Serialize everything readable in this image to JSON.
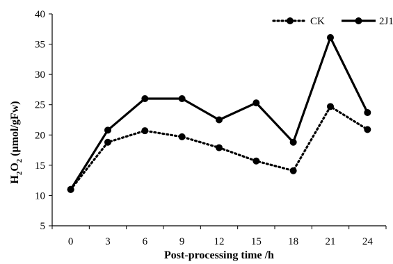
{
  "chart_data": {
    "type": "line",
    "title": "",
    "xlabel": "Post-processing time /h",
    "ylabel": "H2O2 (μmol/gFw)",
    "ylabel_parts": {
      "h": "H",
      "sub1": "2",
      "o": "O",
      "sub2": "2",
      "rest": " (μmol/gFw)"
    },
    "x": [
      0,
      3,
      6,
      9,
      12,
      15,
      18,
      21,
      24
    ],
    "xticks": [
      "0",
      "3",
      "6",
      "9",
      "12",
      "15",
      "18",
      "21",
      "24"
    ],
    "yticks": [
      "5",
      "10",
      "15",
      "20",
      "25",
      "30",
      "35",
      "40"
    ],
    "ylim": [
      5,
      40
    ],
    "grid": false,
    "legend_position": "top-right",
    "series": [
      {
        "name": "CK",
        "style": "dotted",
        "color": "#000000",
        "values": [
          11.0,
          18.8,
          20.7,
          19.7,
          17.9,
          15.7,
          14.1,
          24.7,
          20.9
        ]
      },
      {
        "name": "2J1",
        "style": "solid",
        "color": "#000000",
        "values": [
          11.0,
          20.8,
          26.0,
          26.0,
          22.5,
          25.3,
          18.8,
          36.1,
          23.7
        ]
      }
    ]
  }
}
